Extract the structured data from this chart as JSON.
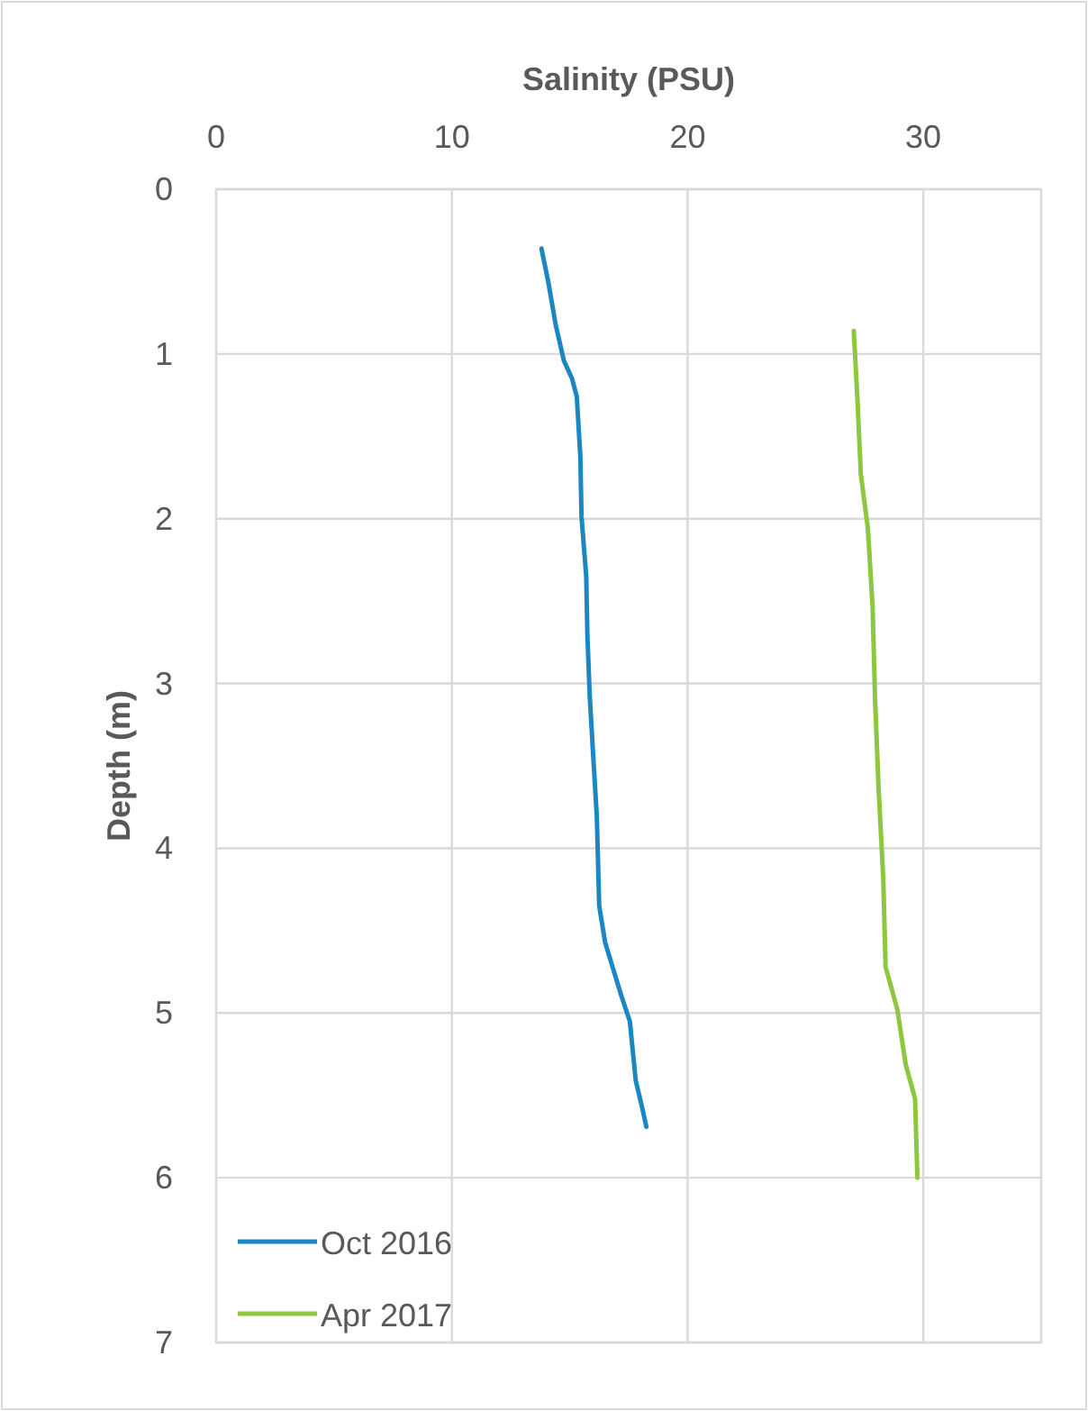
{
  "chart_data": {
    "type": "line",
    "xlabel": "Salinity (PSU)",
    "ylabel": "Depth (m)",
    "xlim": [
      0,
      35
    ],
    "xticks": [
      0,
      10,
      20,
      30
    ],
    "ylim": [
      7,
      0
    ],
    "yticks": [
      0,
      1,
      2,
      3,
      4,
      5,
      6,
      7
    ],
    "grid": true,
    "legend": "bottom left",
    "marker": "none",
    "line_style": "solid",
    "series": [
      {
        "name": "Oct 2016",
        "color": "#1a87c2",
        "x": [
          13.8,
          14.1,
          14.4,
          14.75,
          15.1,
          15.3,
          15.45,
          15.5,
          15.7,
          15.75,
          15.85,
          16.0,
          16.15,
          16.25,
          16.5,
          16.9,
          17.2,
          17.55,
          17.8,
          18.05,
          18.25
        ],
        "values": [
          0.36,
          0.57,
          0.82,
          1.04,
          1.15,
          1.26,
          1.62,
          1.99,
          2.35,
          2.71,
          3.08,
          3.45,
          3.81,
          4.35,
          4.57,
          4.76,
          4.9,
          5.05,
          5.41,
          5.56,
          5.69
        ]
      },
      {
        "name": "Apr 2017",
        "color": "#8dc63f",
        "x": [
          27.05,
          27.2,
          27.35,
          27.65,
          27.85,
          27.95,
          28.1,
          28.3,
          28.4,
          28.9,
          29.25,
          29.65,
          29.75
        ],
        "values": [
          0.86,
          1.26,
          1.73,
          2.06,
          2.54,
          3.08,
          3.63,
          4.18,
          4.72,
          4.98,
          5.31,
          5.52,
          6.0
        ]
      }
    ]
  }
}
